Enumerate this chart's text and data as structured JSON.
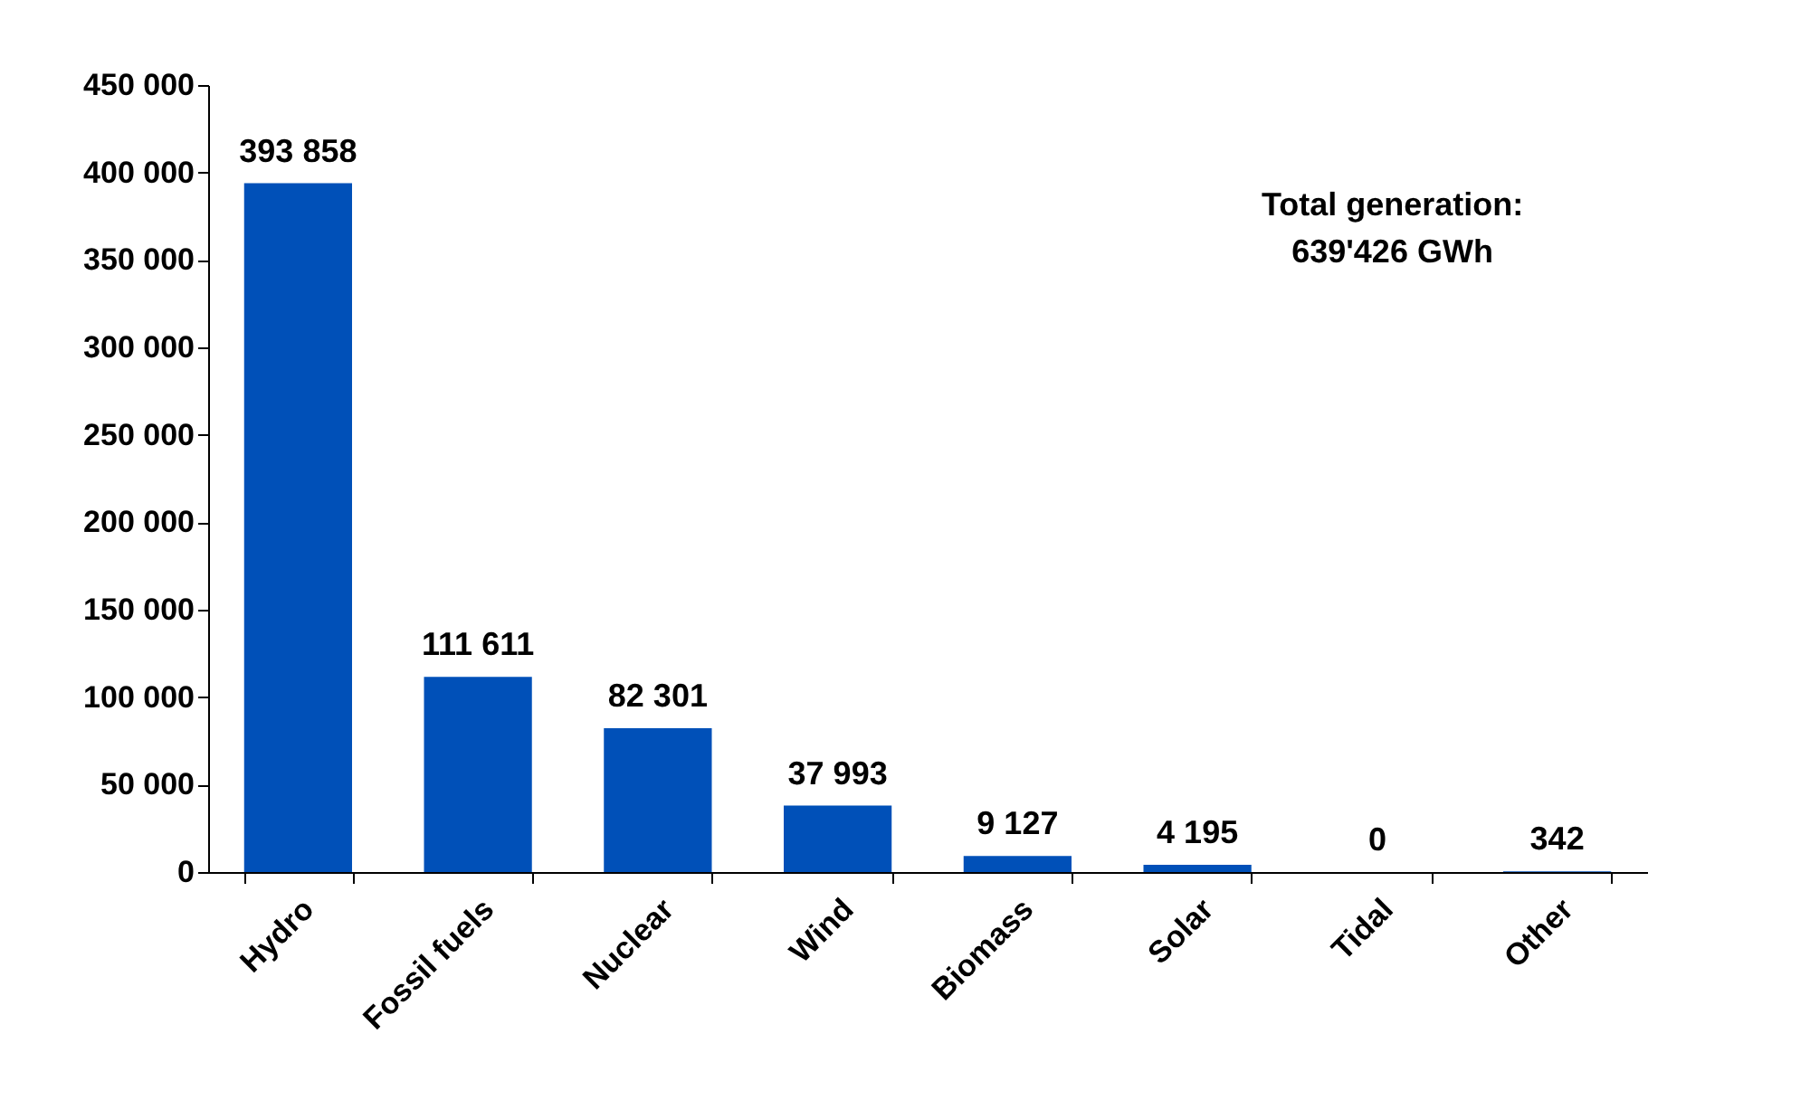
{
  "chart_data": {
    "type": "bar",
    "categories": [
      "Hydro",
      "Fossil fuels",
      "Nuclear",
      "Wind",
      "Biomass",
      "Solar",
      "Tidal",
      "Other"
    ],
    "values": [
      393858,
      111611,
      82301,
      37993,
      9127,
      4195,
      0,
      342
    ],
    "value_labels": [
      "393 858",
      "111 611",
      "82 301",
      "37 993",
      "9 127",
      "4 195",
      "0",
      "342"
    ],
    "color": "#0050b8",
    "ylim": [
      0,
      450000
    ],
    "yticks": [
      {
        "value": 0,
        "label": "0"
      },
      {
        "value": 50000,
        "label": "50 000"
      },
      {
        "value": 100000,
        "label": "100 000"
      },
      {
        "value": 150000,
        "label": "150 000"
      },
      {
        "value": 200000,
        "label": "200 000"
      },
      {
        "value": 250000,
        "label": "250 000"
      },
      {
        "value": 300000,
        "label": "300 000"
      },
      {
        "value": 350000,
        "label": "350 000"
      },
      {
        "value": 400000,
        "label": "400 000"
      },
      {
        "value": 450000,
        "label": "450 000"
      }
    ],
    "annotations": [
      "Total generation:\n639'426 GWh"
    ],
    "grid": false
  }
}
